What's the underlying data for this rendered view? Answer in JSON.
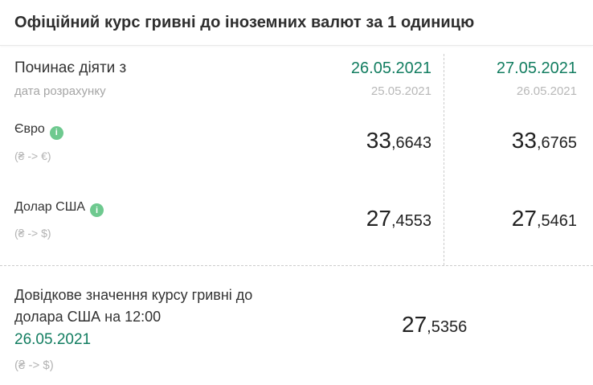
{
  "title": "Офіційний курс гривні до іноземних валют за 1 одиницю",
  "colors": {
    "accent_green": "#127d60",
    "info_green": "#6ec98f",
    "title_text": "#2e2e2e",
    "value_text": "#222222",
    "divider": "#cccccc"
  },
  "icons": {
    "info_glyph": "i"
  },
  "table": {
    "header": {
      "label": "Починає діяти з",
      "sublabel": "дата розрахунку",
      "columns": [
        {
          "effective_date": "26.05.2021",
          "calculation_date": "25.05.2021"
        },
        {
          "effective_date": "27.05.2021",
          "calculation_date": "26.05.2021"
        }
      ]
    },
    "rows": [
      {
        "currency": "Євро",
        "pair": "(₴ -> €)",
        "values": [
          {
            "int": "33",
            "dec": ",6643"
          },
          {
            "int": "33",
            "dec": ",6765"
          }
        ]
      },
      {
        "currency": "Долар США",
        "pair": "(₴ -> $)",
        "values": [
          {
            "int": "27",
            "dec": ",4553"
          },
          {
            "int": "27",
            "dec": ",5461"
          }
        ]
      }
    ]
  },
  "reference": {
    "label_lines": [
      "Довідкове значення курсу гривні до",
      "долара США на 12:00"
    ],
    "date": "26.05.2021",
    "pair": "(₴ -> $)",
    "value": {
      "int": "27",
      "dec": ",5356"
    }
  }
}
